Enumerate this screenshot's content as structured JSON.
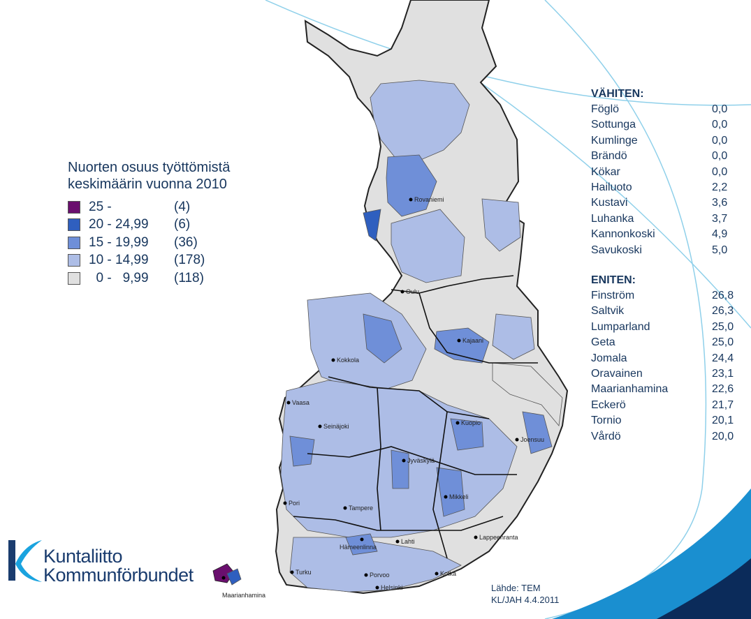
{
  "legend": {
    "title_line1": "Nuorten osuus työttömistä",
    "title_line2": "keskimäärin vuonna 2010",
    "classes": [
      {
        "range": "25 -",
        "count": "(4)",
        "color": "#6a0f6e"
      },
      {
        "range": "20 - 24,99",
        "count": "(6)",
        "color": "#2f5fbf"
      },
      {
        "range": "15 - 19,99",
        "count": "(36)",
        "color": "#6f8fd8"
      },
      {
        "range": "10 - 14,99",
        "count": "(178)",
        "color": "#adbde6"
      },
      {
        "range": "  0 -   9,99",
        "count": "(118)",
        "color": "#e0e0e0"
      }
    ]
  },
  "least": {
    "title": "VÄHITEN:",
    "rows": [
      {
        "name": "Föglö",
        "value": "0,0"
      },
      {
        "name": "Sottunga",
        "value": "0,0"
      },
      {
        "name": "Kumlinge",
        "value": "0,0"
      },
      {
        "name": "Brändö",
        "value": "0,0"
      },
      {
        "name": "Kökar",
        "value": "0,0"
      },
      {
        "name": "Hailuoto",
        "value": "2,2"
      },
      {
        "name": "Kustavi",
        "value": "3,6"
      },
      {
        "name": "Luhanka",
        "value": "3,7"
      },
      {
        "name": "Kannonkoski",
        "value": "4,9"
      },
      {
        "name": "Savukoski",
        "value": "5,0"
      }
    ]
  },
  "most": {
    "title": "ENITEN:",
    "rows": [
      {
        "name": "Finström",
        "value": "26,8"
      },
      {
        "name": "Saltvik",
        "value": "26,3"
      },
      {
        "name": "Lumparland",
        "value": "25,0"
      },
      {
        "name": "Geta",
        "value": "25,0"
      },
      {
        "name": "Jomala",
        "value": "24,4"
      },
      {
        "name": "Oravainen",
        "value": "23,1"
      },
      {
        "name": "Maarianhamina",
        "value": "22,6"
      },
      {
        "name": "Eckerö",
        "value": "21,7"
      },
      {
        "name": "Tornio",
        "value": "20,1"
      },
      {
        "name": "Vårdö",
        "value": "20,0"
      }
    ]
  },
  "cities": [
    "Rovaniemi",
    "Oulu",
    "Kajaani",
    "Kokkola",
    "Vaasa",
    "Seinäjoki",
    "Kuopio",
    "Joensuu",
    "Jyväskylä",
    "Mikkeli",
    "Pori",
    "Tampere",
    "Hämeenlinna",
    "Lahti",
    "Lappeenranta",
    "Turku",
    "Porvoo",
    "Kotka",
    "Helsinki",
    "Maarianhamina"
  ],
  "source": {
    "line1": "Lähde: TEM",
    "line2": "KL/JAH 4.4.2011"
  },
  "logo": {
    "line1": "Kuntaliitto",
    "line2": "Kommunförbundet"
  },
  "colors": {
    "text": "#17365d",
    "arc": "#7ec8e3",
    "corner": "#0a7fc1"
  }
}
